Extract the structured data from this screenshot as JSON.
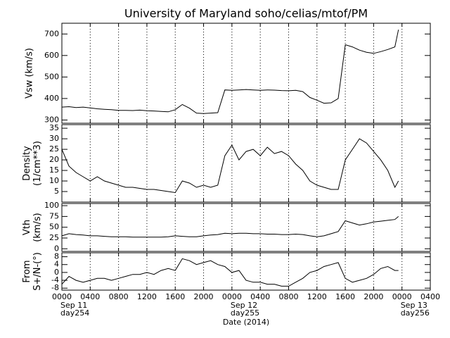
{
  "chart_data": [
    {
      "type": "line",
      "title": "University of Maryland  soho/celias/mtof/PM",
      "ylabel": [
        "Vsw (km/s)"
      ],
      "color": "#000000",
      "grid": true,
      "xlim": [
        0,
        52
      ],
      "x": [
        0,
        1,
        2,
        3,
        4,
        5,
        6,
        7,
        8,
        9,
        10,
        11,
        12,
        13,
        14,
        15,
        16,
        17,
        18,
        19,
        20,
        21,
        22,
        23,
        24,
        25,
        26,
        27,
        28,
        29,
        30,
        31,
        32,
        33,
        34,
        35,
        36,
        37,
        38,
        39,
        40,
        41,
        42,
        43,
        44,
        45,
        46,
        47,
        47.5
      ],
      "values": [
        360,
        362,
        358,
        360,
        356,
        352,
        350,
        348,
        345,
        345,
        344,
        346,
        343,
        342,
        340,
        338,
        348,
        372,
        355,
        332,
        330,
        332,
        334,
        440,
        438,
        440,
        442,
        440,
        438,
        440,
        439,
        437,
        436,
        438,
        432,
        405,
        392,
        378,
        380,
        400,
        650,
        640,
        625,
        615,
        610,
        618,
        628,
        640,
        720
      ],
      "ylim": [
        285,
        750
      ],
      "yticks": [
        300,
        400,
        500,
        600,
        700
      ]
    },
    {
      "type": "line",
      "ylabel": [
        "Density",
        "(1/cm**3)"
      ],
      "color": "#000000",
      "grid": true,
      "xlim": [
        0,
        52
      ],
      "x": [
        0,
        1,
        2,
        3,
        4,
        5,
        6,
        7,
        8,
        9,
        10,
        11,
        12,
        13,
        14,
        15,
        16,
        17,
        18,
        19,
        20,
        21,
        22,
        23,
        24,
        25,
        26,
        27,
        28,
        29,
        30,
        31,
        32,
        33,
        34,
        35,
        36,
        37,
        38,
        39,
        40,
        41,
        42,
        43,
        44,
        45,
        46,
        47,
        47.5
      ],
      "values": [
        25,
        17,
        14,
        12,
        10,
        12,
        10,
        9,
        8,
        7,
        7,
        6.5,
        6,
        6,
        5.5,
        5,
        4.5,
        10,
        9,
        7,
        8,
        7,
        8,
        22,
        27,
        20,
        24,
        25,
        22,
        26,
        23,
        24,
        22,
        18,
        15,
        10,
        8,
        7,
        6,
        6,
        20,
        25,
        30,
        28,
        24,
        20,
        15,
        7,
        10
      ],
      "ylim": [
        0,
        36.7
      ],
      "yticks": [
        5,
        10,
        15,
        20,
        25,
        30,
        35
      ]
    },
    {
      "type": "line",
      "ylabel": [
        "Vth",
        "(km/s)"
      ],
      "color": "#000000",
      "grid": true,
      "xlim": [
        0,
        52
      ],
      "x": [
        0,
        1,
        2,
        3,
        4,
        5,
        6,
        7,
        8,
        9,
        10,
        11,
        12,
        13,
        14,
        15,
        16,
        17,
        18,
        19,
        20,
        21,
        22,
        23,
        24,
        25,
        26,
        27,
        28,
        29,
        30,
        31,
        32,
        33,
        34,
        35,
        36,
        37,
        38,
        39,
        40,
        41,
        42,
        43,
        44,
        45,
        46,
        47,
        47.5
      ],
      "values": [
        30,
        35,
        33,
        32,
        30,
        30,
        29,
        28,
        28,
        28,
        27,
        27,
        27,
        27,
        27,
        28,
        30,
        29,
        28,
        28,
        30,
        32,
        33,
        36,
        35,
        36,
        36,
        35,
        35,
        34,
        34,
        33,
        33,
        34,
        33,
        30,
        28,
        30,
        35,
        40,
        65,
        60,
        55,
        58,
        62,
        64,
        66,
        68,
        75
      ],
      "ylim": [
        -6,
        105
      ],
      "yticks": [
        0,
        25,
        50,
        75,
        100
      ]
    },
    {
      "type": "line",
      "ylabel": [
        "From",
        "S+/N-(°)"
      ],
      "color": "#000000",
      "grid": true,
      "xlim": [
        0,
        52
      ],
      "x": [
        0,
        1,
        2,
        3,
        4,
        5,
        6,
        7,
        8,
        9,
        10,
        11,
        12,
        13,
        14,
        15,
        16,
        17,
        18,
        19,
        20,
        21,
        22,
        23,
        24,
        25,
        26,
        27,
        28,
        29,
        30,
        31,
        32,
        33,
        34,
        35,
        36,
        37,
        38,
        39,
        40,
        41,
        42,
        43,
        44,
        45,
        46,
        47,
        47.5
      ],
      "values": [
        -6,
        -2,
        -4,
        -5,
        -4,
        -3,
        -3,
        -4,
        -3,
        -2,
        -1,
        -1,
        0,
        -1,
        1,
        2,
        1,
        7,
        6,
        4,
        5,
        6,
        4,
        3,
        0,
        1,
        -4,
        -5,
        -5,
        -6,
        -6,
        -7,
        -7,
        -5,
        -3,
        0,
        1,
        3,
        4,
        5,
        -3,
        -5,
        -4,
        -3,
        -1,
        2,
        3,
        1,
        1
      ],
      "ylim": [
        -9,
        10
      ],
      "yticks": [
        -8,
        -4,
        0,
        4,
        8
      ],
      "xlabel": "Date (2014)",
      "xticks": [
        {
          "value": 0,
          "label": "0000"
        },
        {
          "value": 4,
          "label": "0400"
        },
        {
          "value": 8,
          "label": "0800"
        },
        {
          "value": 12,
          "label": "1200"
        },
        {
          "value": 16,
          "label": "1600"
        },
        {
          "value": 20,
          "label": "2000"
        },
        {
          "value": 24,
          "label": "0000"
        },
        {
          "value": 28,
          "label": "0400"
        },
        {
          "value": 32,
          "label": "0800"
        },
        {
          "value": 36,
          "label": "1200"
        },
        {
          "value": 40,
          "label": "1600"
        },
        {
          "value": 44,
          "label": "2000"
        },
        {
          "value": 48,
          "label": "0000"
        },
        {
          "value": 52,
          "label": "0400"
        }
      ],
      "date_labels": [
        {
          "x": 0,
          "lines": [
            "Sep 11",
            "day254"
          ]
        },
        {
          "x": 24,
          "lines": [
            "Sep 12",
            "day255"
          ]
        },
        {
          "x": 48,
          "lines": [
            "Sep 13",
            "day256"
          ]
        }
      ]
    }
  ]
}
